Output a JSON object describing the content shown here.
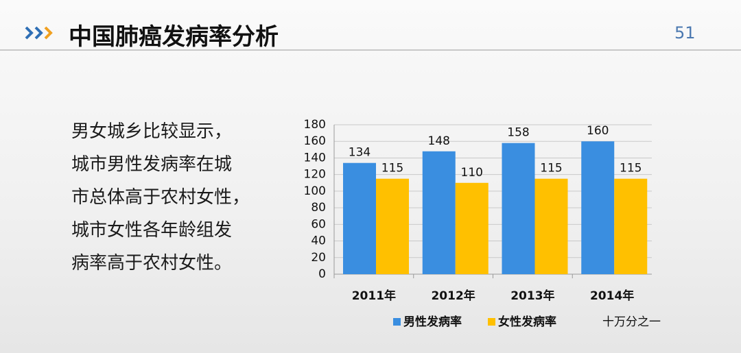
{
  "header": {
    "title": "中国肺癌发病率分析",
    "page_number": "51"
  },
  "body": {
    "lines": [
      "男女城乡比较显示，",
      "城市男性发病率在城",
      "市总体高于农村女性，",
      "城市女性各年龄组发",
      "病率高于农村女性。"
    ]
  },
  "chart_data": {
    "type": "bar",
    "categories": [
      "2011年",
      "2012年",
      "2013年",
      "2014年"
    ],
    "series": [
      {
        "name": "男性发病率",
        "color": "#3a8ee0",
        "values": [
          134,
          148,
          158,
          160
        ]
      },
      {
        "name": "女性发病率",
        "color": "#ffc000",
        "values": [
          115,
          110,
          115,
          115
        ]
      }
    ],
    "ylim": [
      0,
      180
    ],
    "yticks": [
      0,
      20,
      40,
      60,
      80,
      100,
      120,
      140,
      160,
      180
    ],
    "grid": true,
    "legend": "bottom",
    "unit_note": "十万分之一"
  }
}
